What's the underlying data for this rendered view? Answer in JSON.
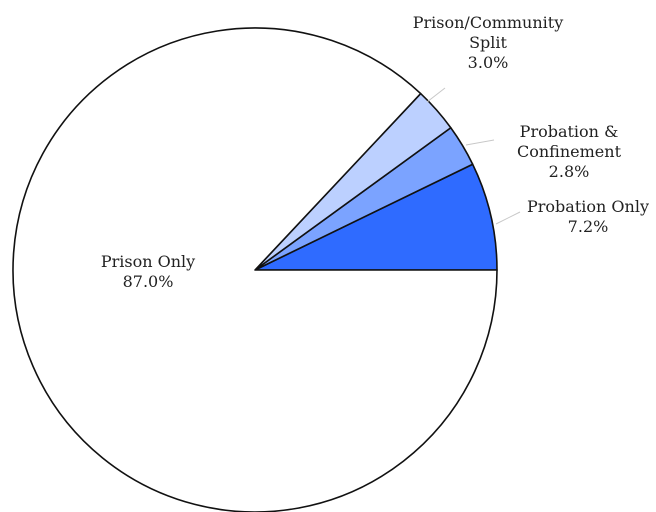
{
  "chart_data": {
    "type": "pie",
    "slices": [
      {
        "label_lines": [
          "Probation Only"
        ],
        "value": 7.2,
        "value_label": "7.2%",
        "color": "#2f6bff"
      },
      {
        "label_lines": [
          "Probation &",
          "Confinement"
        ],
        "value": 2.8,
        "value_label": "2.8%",
        "color": "#7ba3ff"
      },
      {
        "label_lines": [
          "Prison/Community",
          "Split"
        ],
        "value": 3.0,
        "value_label": "3.0%",
        "color": "#bcd0ff"
      },
      {
        "label_lines": [
          "Prison Only"
        ],
        "value": 87.0,
        "value_label": "87.0%",
        "color": "#ffffff"
      }
    ],
    "start": "east",
    "direction": "counterclockwise",
    "legend": "none"
  }
}
